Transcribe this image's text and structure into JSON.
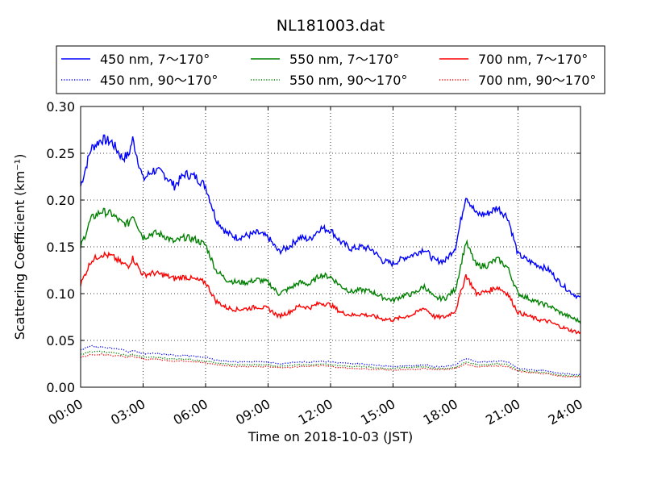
{
  "chart_data": {
    "type": "line",
    "title": "NL181003.dat",
    "xlabel": "Time on 2018-10-03 (JST)",
    "ylabel": "Scattering Coefficient (km⁻¹)",
    "xlim": [
      0,
      24
    ],
    "ylim": [
      0.0,
      0.3
    ],
    "grid": true,
    "legend_position": "top, above plot, 3 columns",
    "x_ticks": [
      "00:00",
      "03:00",
      "06:00",
      "09:00",
      "12:00",
      "15:00",
      "18:00",
      "21:00",
      "24:00"
    ],
    "y_ticks": [
      "0.00",
      "0.05",
      "0.10",
      "0.15",
      "0.20",
      "0.25",
      "0.30"
    ],
    "x_hours": [
      0,
      0.5,
      1,
      1.5,
      2,
      2.3,
      2.5,
      3,
      3.5,
      4,
      4.5,
      5,
      5.5,
      6,
      6.5,
      7,
      7.5,
      8,
      8.5,
      9,
      9.5,
      10,
      10.5,
      11,
      11.5,
      12,
      12.5,
      13,
      13.5,
      14,
      14.5,
      15,
      15.5,
      16,
      16.5,
      17,
      17.5,
      18,
      18.5,
      19,
      19.5,
      20,
      20.5,
      21,
      21.5,
      22,
      22.5,
      23,
      23.5,
      24
    ],
    "series": [
      {
        "name": "450 nm, 7～170°",
        "color": "#0000ff",
        "style": "solid",
        "values": [
          0.215,
          0.255,
          0.265,
          0.262,
          0.245,
          0.248,
          0.265,
          0.222,
          0.232,
          0.228,
          0.215,
          0.228,
          0.225,
          0.215,
          0.18,
          0.165,
          0.16,
          0.162,
          0.165,
          0.16,
          0.145,
          0.15,
          0.16,
          0.158,
          0.17,
          0.168,
          0.155,
          0.148,
          0.15,
          0.147,
          0.135,
          0.132,
          0.138,
          0.142,
          0.148,
          0.135,
          0.135,
          0.15,
          0.205,
          0.185,
          0.185,
          0.192,
          0.182,
          0.142,
          0.135,
          0.13,
          0.125,
          0.112,
          0.102,
          0.095
        ]
      },
      {
        "name": "550 nm, 7～170°",
        "color": "#008000",
        "style": "solid",
        "values": [
          0.15,
          0.18,
          0.188,
          0.185,
          0.175,
          0.175,
          0.185,
          0.16,
          0.165,
          0.162,
          0.155,
          0.16,
          0.158,
          0.152,
          0.125,
          0.115,
          0.112,
          0.112,
          0.115,
          0.112,
          0.1,
          0.105,
          0.112,
          0.11,
          0.12,
          0.118,
          0.108,
          0.102,
          0.104,
          0.102,
          0.096,
          0.093,
          0.098,
          0.1,
          0.108,
          0.095,
          0.095,
          0.105,
          0.155,
          0.13,
          0.13,
          0.137,
          0.128,
          0.1,
          0.095,
          0.09,
          0.087,
          0.08,
          0.075,
          0.07
        ]
      },
      {
        "name": "700 nm, 7～170°",
        "color": "#ff0000",
        "style": "solid",
        "values": [
          0.11,
          0.135,
          0.142,
          0.14,
          0.132,
          0.13,
          0.138,
          0.12,
          0.122,
          0.12,
          0.116,
          0.118,
          0.115,
          0.112,
          0.092,
          0.085,
          0.083,
          0.084,
          0.086,
          0.084,
          0.076,
          0.08,
          0.087,
          0.085,
          0.09,
          0.088,
          0.08,
          0.077,
          0.078,
          0.076,
          0.073,
          0.072,
          0.075,
          0.078,
          0.085,
          0.075,
          0.075,
          0.082,
          0.12,
          0.1,
          0.102,
          0.107,
          0.1,
          0.08,
          0.076,
          0.072,
          0.07,
          0.065,
          0.061,
          0.058
        ]
      },
      {
        "name": "450 nm, 90～170°",
        "color": "#0000ff",
        "style": "dotted",
        "values": [
          0.04,
          0.044,
          0.043,
          0.042,
          0.04,
          0.038,
          0.039,
          0.036,
          0.036,
          0.035,
          0.034,
          0.034,
          0.033,
          0.032,
          0.029,
          0.028,
          0.027,
          0.027,
          0.027,
          0.027,
          0.025,
          0.026,
          0.027,
          0.027,
          0.028,
          0.027,
          0.026,
          0.025,
          0.025,
          0.024,
          0.023,
          0.022,
          0.023,
          0.023,
          0.024,
          0.022,
          0.022,
          0.024,
          0.031,
          0.027,
          0.027,
          0.028,
          0.027,
          0.02,
          0.019,
          0.018,
          0.017,
          0.015,
          0.014,
          0.013
        ]
      },
      {
        "name": "550 nm, 90～170°",
        "color": "#008000",
        "style": "dotted",
        "values": [
          0.035,
          0.038,
          0.038,
          0.037,
          0.035,
          0.034,
          0.035,
          0.032,
          0.032,
          0.031,
          0.03,
          0.03,
          0.029,
          0.028,
          0.026,
          0.025,
          0.024,
          0.024,
          0.024,
          0.024,
          0.022,
          0.023,
          0.024,
          0.024,
          0.025,
          0.024,
          0.023,
          0.022,
          0.022,
          0.021,
          0.02,
          0.02,
          0.021,
          0.021,
          0.022,
          0.02,
          0.02,
          0.021,
          0.027,
          0.024,
          0.024,
          0.025,
          0.024,
          0.018,
          0.017,
          0.016,
          0.015,
          0.013,
          0.012,
          0.012
        ]
      },
      {
        "name": "700 nm, 90～170°",
        "color": "#ff0000",
        "style": "dotted",
        "values": [
          0.032,
          0.035,
          0.035,
          0.034,
          0.033,
          0.032,
          0.033,
          0.03,
          0.03,
          0.029,
          0.028,
          0.028,
          0.027,
          0.026,
          0.024,
          0.023,
          0.022,
          0.022,
          0.022,
          0.022,
          0.021,
          0.021,
          0.022,
          0.022,
          0.023,
          0.022,
          0.021,
          0.02,
          0.02,
          0.019,
          0.019,
          0.018,
          0.019,
          0.019,
          0.02,
          0.019,
          0.019,
          0.02,
          0.025,
          0.022,
          0.022,
          0.023,
          0.022,
          0.017,
          0.016,
          0.015,
          0.014,
          0.012,
          0.011,
          0.011
        ]
      }
    ],
    "legend_order": [
      0,
      1,
      2,
      3,
      4,
      5
    ]
  }
}
